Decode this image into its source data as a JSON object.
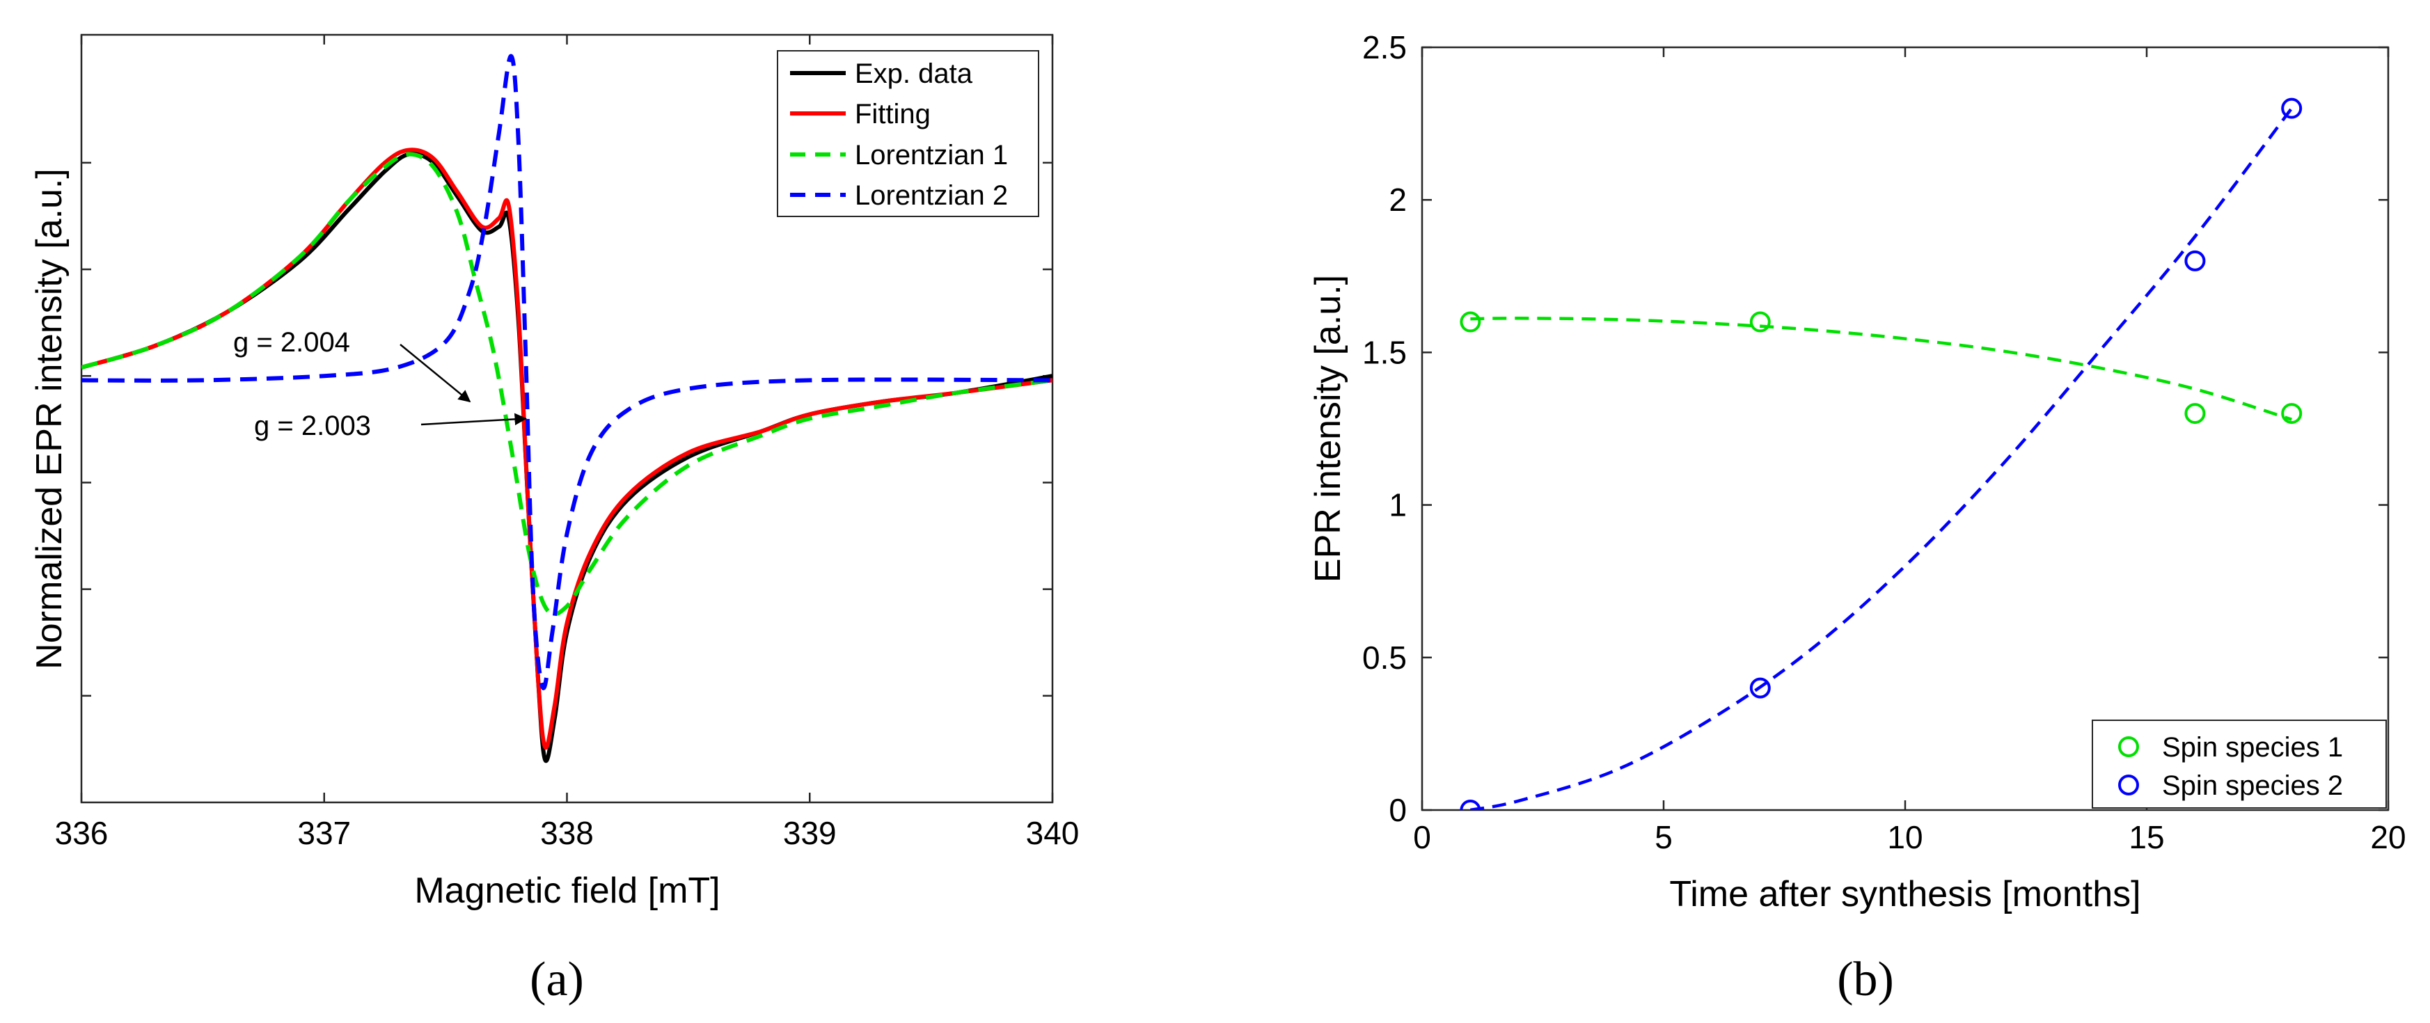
{
  "chart_data": [
    {
      "type": "line",
      "panel_label": "(a)",
      "xlabel": "Magnetic field [mT]",
      "ylabel": "Normalized EPR intensity [a.u.]",
      "xlim": [
        336,
        340
      ],
      "ylim": [
        -0.75,
        1.05
      ],
      "xticks": [
        336,
        337,
        338,
        339,
        340
      ],
      "xtick_labels": [
        "336",
        "337",
        "338",
        "339",
        "340"
      ],
      "yticks_unlabeled": [
        -0.5,
        -0.25,
        0,
        0.25,
        0.5,
        0.75
      ],
      "series": [
        {
          "name": "Exp. data",
          "color": "#000000",
          "style": "solid",
          "x": [
            336.0,
            336.3,
            336.6,
            336.9,
            337.1,
            337.25,
            337.35,
            337.45,
            337.55,
            337.65,
            337.72,
            337.76,
            337.8,
            337.84,
            337.88,
            337.91,
            337.95,
            338.0,
            338.1,
            338.25,
            338.5,
            338.8,
            339.0,
            339.3,
            339.6,
            340.0
          ],
          "y": [
            0.27,
            0.32,
            0.4,
            0.52,
            0.64,
            0.73,
            0.77,
            0.75,
            0.67,
            0.59,
            0.6,
            0.62,
            0.38,
            -0.05,
            -0.45,
            -0.65,
            -0.55,
            -0.35,
            -0.17,
            -0.04,
            0.06,
            0.12,
            0.16,
            0.19,
            0.21,
            0.25
          ]
        },
        {
          "name": "Fitting",
          "color": "#ff0000",
          "style": "solid",
          "x": [
            336.0,
            336.3,
            336.6,
            336.9,
            337.1,
            337.25,
            337.35,
            337.45,
            337.55,
            337.65,
            337.72,
            337.76,
            337.8,
            337.84,
            337.88,
            337.91,
            337.95,
            338.0,
            338.1,
            338.25,
            338.5,
            338.8,
            339.0,
            339.3,
            339.6,
            340.0
          ],
          "y": [
            0.27,
            0.32,
            0.4,
            0.53,
            0.66,
            0.75,
            0.78,
            0.76,
            0.68,
            0.6,
            0.62,
            0.65,
            0.4,
            -0.05,
            -0.45,
            -0.62,
            -0.52,
            -0.33,
            -0.16,
            -0.03,
            0.07,
            0.12,
            0.16,
            0.19,
            0.21,
            0.24
          ]
        },
        {
          "name": "Lorentzian 1",
          "color": "#00e000",
          "style": "dashed",
          "x": [
            336.0,
            336.3,
            336.6,
            336.9,
            337.1,
            337.25,
            337.35,
            337.45,
            337.55,
            337.62,
            337.7,
            337.78,
            337.85,
            337.92,
            338.0,
            338.1,
            338.25,
            338.5,
            338.8,
            339.0,
            339.3,
            339.6,
            340.0
          ],
          "y": [
            0.27,
            0.32,
            0.4,
            0.53,
            0.66,
            0.74,
            0.77,
            0.74,
            0.63,
            0.48,
            0.3,
            0.05,
            -0.18,
            -0.3,
            -0.29,
            -0.2,
            -0.08,
            0.04,
            0.11,
            0.15,
            0.18,
            0.21,
            0.24
          ]
        },
        {
          "name": "Lorentzian 2",
          "color": "#0000ff",
          "style": "dashed",
          "x": [
            336.0,
            336.5,
            337.0,
            337.3,
            337.5,
            337.6,
            337.66,
            337.72,
            337.77,
            337.8,
            337.83,
            337.86,
            337.9,
            337.94,
            338.0,
            338.1,
            338.25,
            338.5,
            339.0,
            340.0
          ],
          "y": [
            0.24,
            0.24,
            0.25,
            0.27,
            0.33,
            0.45,
            0.6,
            0.82,
            1.0,
            0.8,
            0.3,
            -0.25,
            -0.48,
            -0.35,
            -0.12,
            0.07,
            0.17,
            0.22,
            0.24,
            0.24
          ]
        }
      ],
      "annotations": [
        {
          "text": "g = 2.004",
          "arrow_to": [
            337.6,
            0.19
          ]
        },
        {
          "text": "g = 2.003",
          "arrow_to": [
            337.83,
            0.15
          ]
        }
      ],
      "legend": [
        "Exp. data",
        "Fitting",
        "Lorentzian 1",
        "Lorentzian 2"
      ],
      "legend_position": "top-right"
    },
    {
      "type": "scatter",
      "panel_label": "(b)",
      "xlabel": "Time after synthesis [months]",
      "ylabel": "EPR intensity [a.u.]",
      "xlim": [
        0,
        20
      ],
      "ylim": [
        0,
        2.5
      ],
      "xticks": [
        0,
        5,
        10,
        15,
        20
      ],
      "xtick_labels": [
        "0",
        "5",
        "10",
        "15",
        "20"
      ],
      "yticks": [
        0,
        0.5,
        1,
        1.5,
        2,
        2.5
      ],
      "ytick_labels": [
        "0",
        "0.5",
        "1",
        "1.5",
        "2",
        "2.5"
      ],
      "series": [
        {
          "name": "Spin species 1",
          "color": "#00e000",
          "marker": "circle",
          "x": [
            1,
            7,
            16,
            18
          ],
          "y": [
            1.6,
            1.6,
            1.3,
            1.3
          ],
          "fit": {
            "style": "dashed",
            "x": [
              1,
              2,
              4,
              6,
              8,
              10,
              12,
              14,
              16,
              18
            ],
            "y": [
              1.61,
              1.612,
              1.608,
              1.595,
              1.575,
              1.545,
              1.505,
              1.45,
              1.38,
              1.28
            ]
          }
        },
        {
          "name": "Spin species 2",
          "color": "#0000ff",
          "marker": "circle",
          "x": [
            1,
            7,
            16,
            18
          ],
          "y": [
            0.0,
            0.4,
            1.8,
            2.3
          ],
          "fit": {
            "style": "dashed",
            "x": [
              1,
              2,
              4,
              6,
              8,
              10,
              12,
              14,
              16,
              18
            ],
            "y": [
              0.0,
              0.03,
              0.13,
              0.3,
              0.52,
              0.8,
              1.13,
              1.5,
              1.88,
              2.3
            ]
          }
        }
      ],
      "legend": [
        "Spin species 1",
        "Spin species 2"
      ],
      "legend_position": "bottom-right"
    }
  ]
}
